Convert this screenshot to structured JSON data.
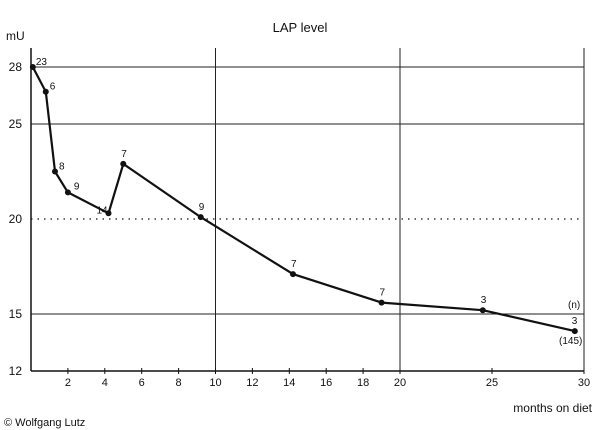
{
  "chart_data": {
    "type": "line",
    "title": "LAP level",
    "ylabel": "mU",
    "xlabel": "months on diet",
    "credit": "© Wolfgang Lutz",
    "xlim": [
      0,
      30
    ],
    "ylim": [
      12,
      29
    ],
    "y_ticks": [
      12,
      15,
      20,
      25,
      28
    ],
    "x_ticks": [
      2,
      4,
      6,
      8,
      10,
      12,
      14,
      16,
      18,
      20,
      25,
      30
    ],
    "vertical_gridlines_at": [
      10,
      20,
      30
    ],
    "horizontal_gridlines_at": [
      15,
      25,
      28
    ],
    "reference_line": {
      "y": 20,
      "style": "dotted"
    },
    "series": [
      {
        "points": [
          {
            "x": 0.1,
            "y": 28.0,
            "label": "23"
          },
          {
            "x": 0.8,
            "y": 26.7,
            "label": "6"
          },
          {
            "x": 1.3,
            "y": 22.5,
            "label": "8"
          },
          {
            "x": 2.0,
            "y": 21.4,
            "label": "9"
          },
          {
            "x": 4.2,
            "y": 20.3,
            "label": "14"
          },
          {
            "x": 5.0,
            "y": 22.9,
            "label": "7"
          },
          {
            "x": 9.2,
            "y": 20.1,
            "label": "9"
          },
          {
            "x": 14.2,
            "y": 17.1,
            "label": "7"
          },
          {
            "x": 19.0,
            "y": 15.6,
            "label": "7"
          },
          {
            "x": 24.5,
            "y": 15.2,
            "label": "3"
          },
          {
            "x": 29.5,
            "y": 14.1,
            "label": "3"
          }
        ]
      }
    ],
    "annotations": [
      "(n)",
      "(145)"
    ],
    "grid": "partial"
  }
}
